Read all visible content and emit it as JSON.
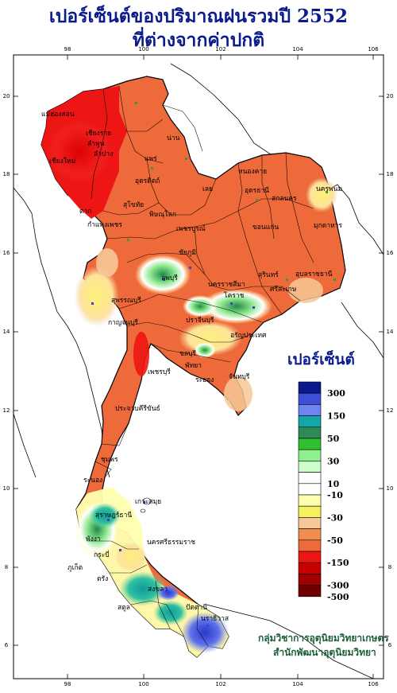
{
  "title": {
    "line1": "เปอร์เซ็นต์ของปริมาณฝนรวมปี 2552",
    "line2": "ที่ต่างจากค่าปกติ"
  },
  "axes": {
    "lon_ticks": [
      "98",
      "100",
      "102",
      "104",
      "106"
    ],
    "lat_ticks": [
      "20",
      "18",
      "16",
      "14",
      "12",
      "10",
      "8",
      "6"
    ]
  },
  "legend": {
    "title": "เปอร์เซ็นต์",
    "items": [
      {
        "label": "300",
        "color": "#0a1a8e"
      },
      {
        "label": "",
        "color": "#3d4fd6"
      },
      {
        "label": "150",
        "color": "#6f84f0"
      },
      {
        "label": "",
        "color": "#14a7a7"
      },
      {
        "label": "50",
        "color": "#2e8b57"
      },
      {
        "label": "",
        "color": "#2fbf2f"
      },
      {
        "label": "30",
        "color": "#90f090"
      },
      {
        "label": "",
        "color": "#ccffcc"
      },
      {
        "label": "10",
        "color": "#ffffff"
      },
      {
        "label": "-10",
        "color": "#ffffff"
      },
      {
        "label": "",
        "color": "#ffffb0"
      },
      {
        "label": "-30",
        "color": "#f5f060"
      },
      {
        "label": "",
        "color": "#f7c898"
      },
      {
        "label": "-50",
        "color": "#f28c50"
      },
      {
        "label": "",
        "color": "#ef6a3a"
      },
      {
        "label": "-150",
        "color": "#ee1515"
      },
      {
        "label": "",
        "color": "#c80000"
      },
      {
        "label": "-300",
        "color": "#a00000"
      },
      {
        "label": "-500",
        "color": "#6e0000"
      }
    ]
  },
  "provinces": [
    "เชียงราย",
    "แม่ฮ่องสอน",
    "เชียงใหม่",
    "ลำปาง",
    "ลำพูน",
    "น่าน",
    "แพร่",
    "อุตรดิตถ์",
    "ตาก",
    "สุโขทัย",
    "พิษณุโลก",
    "กำแพงเพชร",
    "เพชรบูรณ์",
    "เลย",
    "หนองคาย",
    "อุดรธานี",
    "สกลนคร",
    "นครพนม",
    "มุกดาหาร",
    "ขอนแก่น",
    "ชัยภูมิ",
    "อุบลราชธานี",
    "ศรีสะเกษ",
    "สุรินทร์",
    "นครราชสีมา",
    "โคราช",
    "ลพบุรี",
    "สุพรรณบุรี",
    "กาญจนบุรี",
    "ปราจีนบุรี",
    "อรัญประเทศ",
    "ชลบุรี",
    "พัทยา",
    "ระยอง",
    "จันทบุรี",
    "เพชรบุรี",
    "ประจวบคีรีขันธ์",
    "ชุมพร",
    "ระนอง",
    "สุราษฎร์ธานี",
    "เกาะสมุย",
    "นครศรีธรรมราช",
    "พังงา",
    "กระบี่",
    "ภูเก็ต",
    "ตรัง",
    "สงขลา",
    "ปัตตานี",
    "นราธิวาส",
    "สตูล"
  ],
  "credits": {
    "line1": "กลุ่มวิชาการอุตุนิยมวิทยาเกษตร",
    "line2": "สำนักพัฒนาอุตุนิยมวิทยา"
  }
}
